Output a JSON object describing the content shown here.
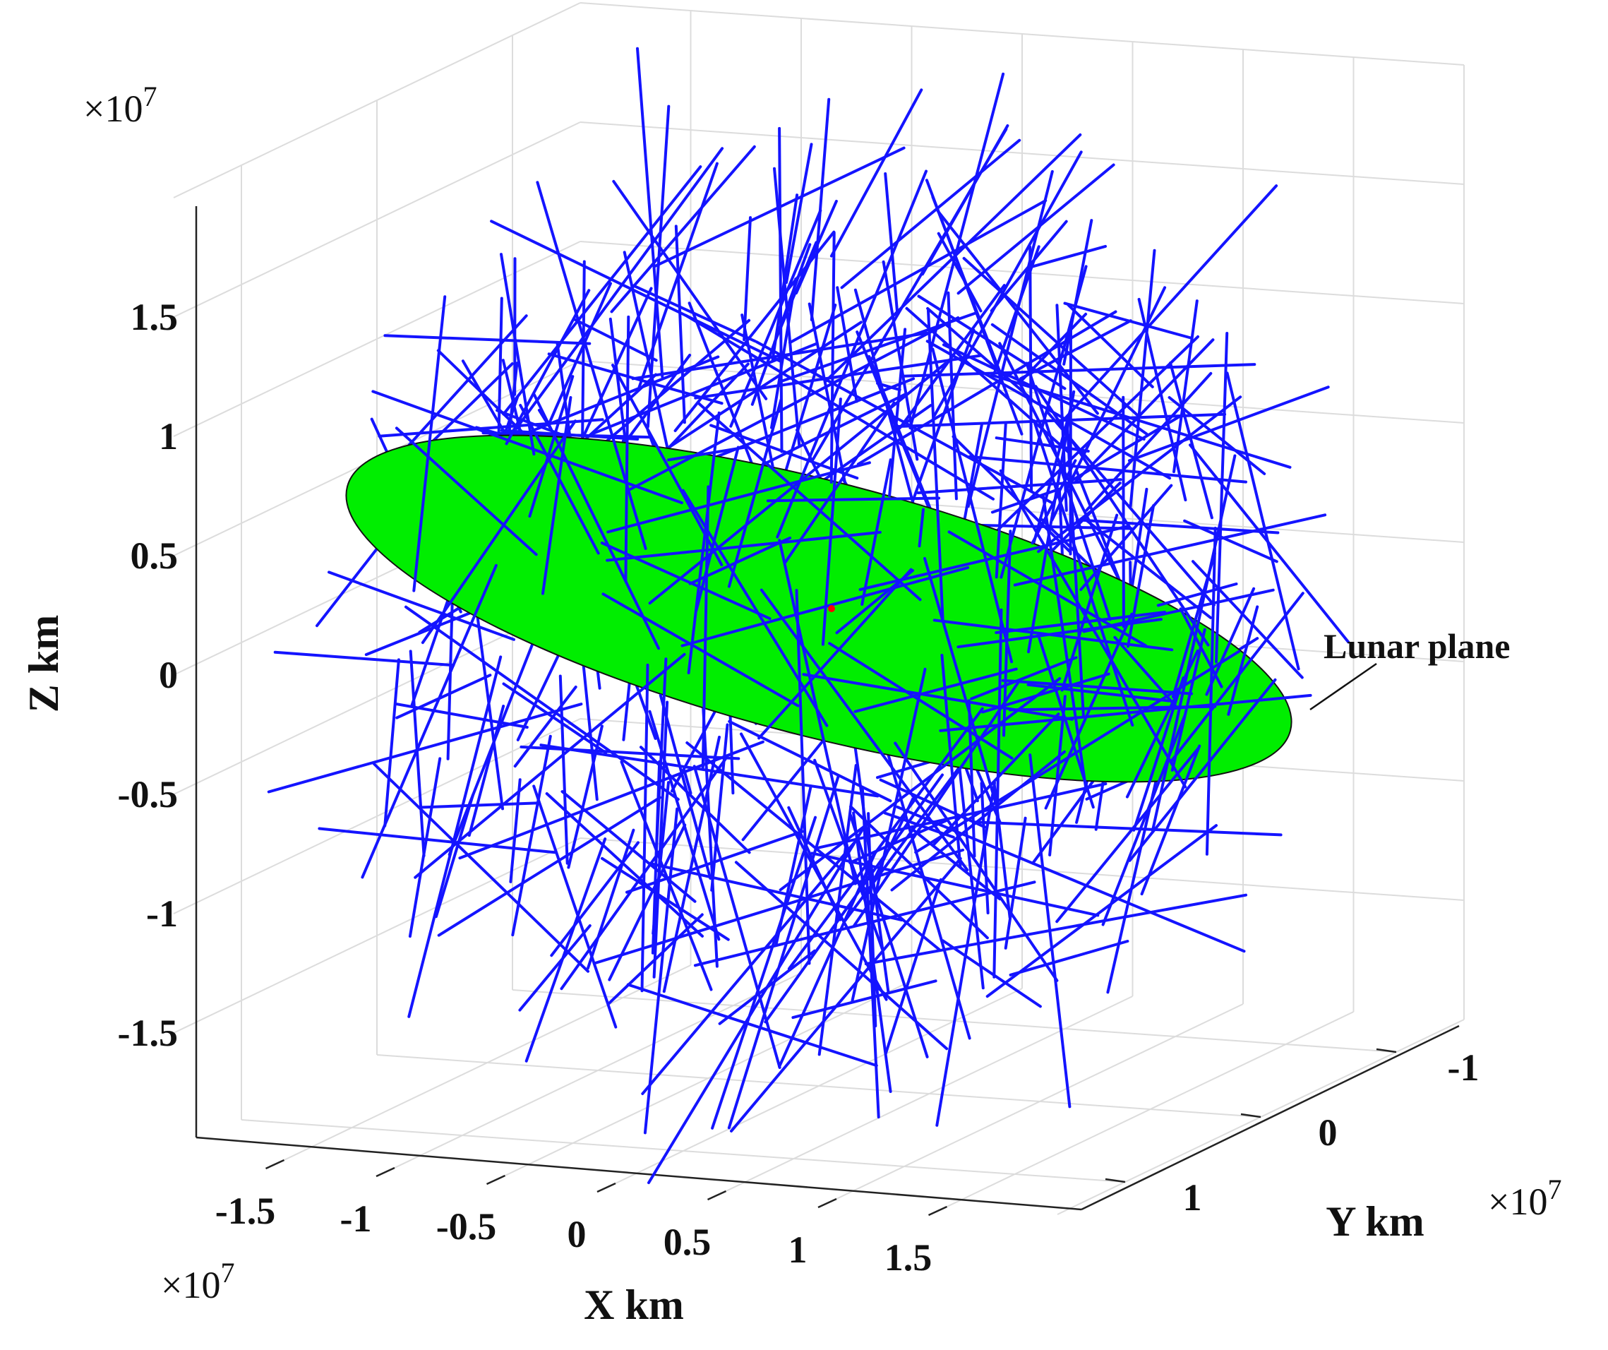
{
  "chart_data": {
    "type": "scatter",
    "projection": "3d",
    "grid": true,
    "xlabel": "X km",
    "ylabel": "Y km",
    "zlabel": "Z km",
    "x_exponent": "×10",
    "y_exponent": "×10",
    "z_exponent": "×10",
    "exponent_power": "7",
    "x_ticks": [
      "-1.5",
      "-1",
      "-0.5",
      "0",
      "0.5",
      "1",
      "1.5"
    ],
    "y_ticks": [
      "-1",
      "0",
      "1"
    ],
    "z_ticks": [
      "1.5",
      "1",
      "0.5",
      "0",
      "-0.5",
      "-1",
      "-1.5"
    ],
    "xlim": [
      -2,
      2
    ],
    "ylim": [
      -1.5,
      1.5
    ],
    "zlim": [
      -2,
      2
    ],
    "annotation": "Lunar plane",
    "series": [
      {
        "name": "",
        "kind": "line-segments",
        "color": "#1414ff",
        "segment_count": 400,
        "shell_radius": 1.9
      },
      {
        "name": "",
        "kind": "plane",
        "color": "#00ee00"
      },
      {
        "name": "",
        "kind": "point",
        "color": "#ff0000",
        "x": 0,
        "y": 0,
        "z": 0
      }
    ]
  }
}
